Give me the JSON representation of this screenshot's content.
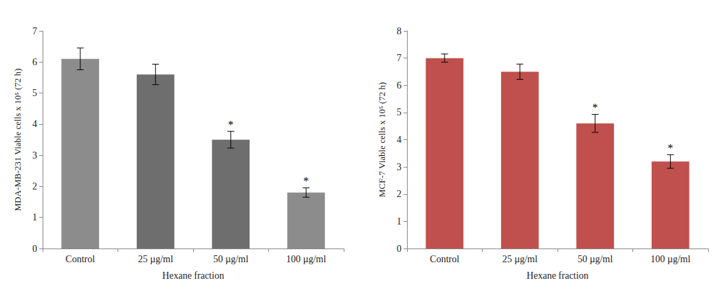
{
  "chart_data": [
    {
      "type": "bar",
      "x_label": "Hexane fraction",
      "y_label": "MDA-MB-231 Viable cells x 10⁵ (72 h)",
      "categories": [
        "Control",
        "25 µg/ml",
        "50 µg/ml",
        "100 µg/ml"
      ],
      "values": [
        6.1,
        5.6,
        3.5,
        1.8
      ],
      "errors": [
        0.35,
        0.33,
        0.27,
        0.15
      ],
      "colors": [
        "#8c8c8c",
        "#6e6e6e",
        "#6e6e6e",
        "#8c8c8c"
      ],
      "ylim": [
        0,
        7
      ],
      "yticks": [
        0,
        1,
        2,
        3,
        4,
        5,
        6,
        7
      ],
      "grid": false,
      "annotations": [
        {
          "category": "50 µg/ml",
          "text": "*"
        },
        {
          "category": "100 µg/ml",
          "text": "*"
        }
      ]
    },
    {
      "type": "bar",
      "x_label": "Hexane fraction",
      "y_label": "MCF-7 Viable cells x 10⁵ (72 h)",
      "categories": [
        "Control",
        "25 µg/ml",
        "50 µg/ml",
        "100 µg/ml"
      ],
      "values": [
        7.0,
        6.5,
        4.6,
        3.2
      ],
      "errors": [
        0.15,
        0.28,
        0.33,
        0.25
      ],
      "color": "#c0504d",
      "ylim": [
        0,
        8
      ],
      "yticks": [
        0,
        1,
        2,
        3,
        4,
        5,
        6,
        7,
        8
      ],
      "grid": false,
      "annotations": [
        {
          "category": "50 µg/ml",
          "text": "*"
        },
        {
          "category": "100 µg/ml",
          "text": "*"
        }
      ]
    }
  ]
}
